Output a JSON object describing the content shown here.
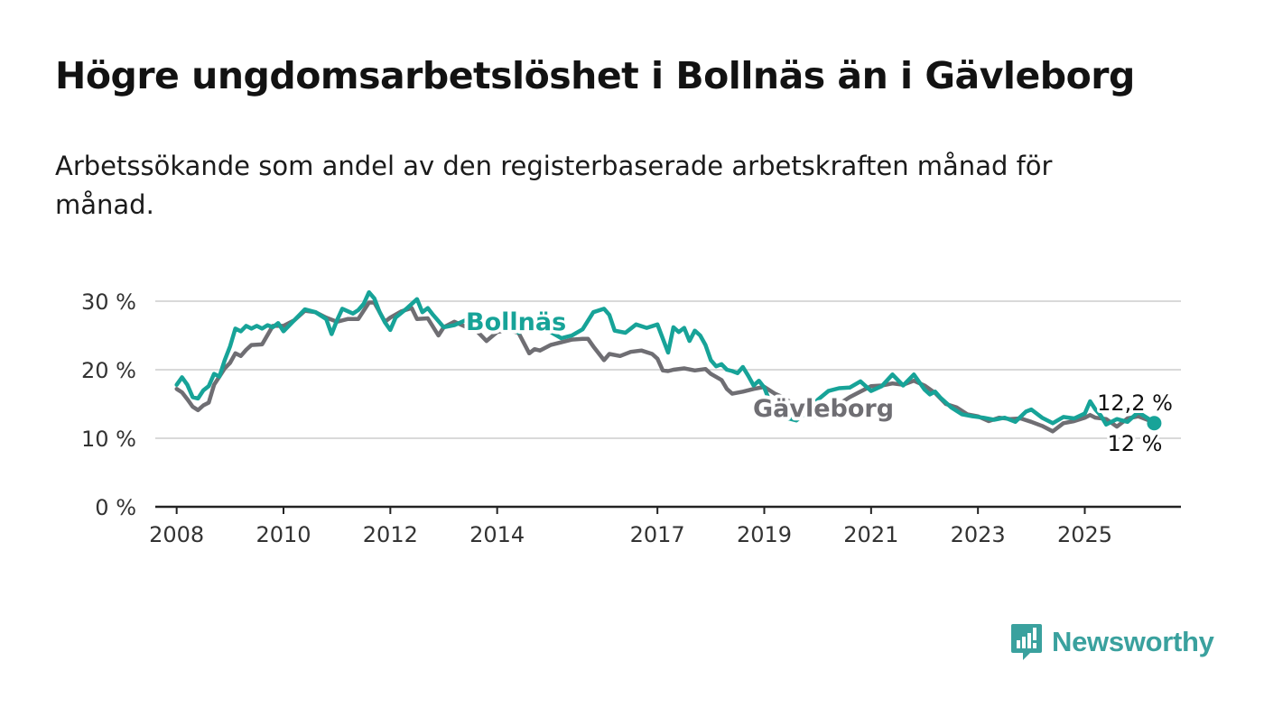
{
  "title": "Högre ungdomsarbetslöshet i Bollnäs än i Gävleborg",
  "subtitle": "Arbetssökande som andel av den registerbaserade arbetskraften månad för månad.",
  "brand": {
    "name": "Newsworthy",
    "color": "#3aa19e",
    "icon": "newsworthy-logo-icon"
  },
  "chart_data": {
    "type": "line",
    "title": "Högre ungdomsarbetslöshet i Bollnäs än i Gävleborg",
    "xlabel": "",
    "ylabel": "",
    "ylim": [
      0,
      30
    ],
    "xlim": [
      2007.6,
      2026.8
    ],
    "yticks": [
      0,
      10,
      20,
      30
    ],
    "ytick_labels": [
      "0 %",
      "10 %",
      "20 %",
      "30 %"
    ],
    "xticks": [
      2008,
      2010,
      2012,
      2014,
      2017,
      2019,
      2021,
      2023,
      2025
    ],
    "xtick_labels": [
      "2008",
      "2010",
      "2012",
      "2014",
      "2017",
      "2019",
      "2021",
      "2023",
      "2025"
    ],
    "grid": true,
    "series": [
      {
        "name": "Bollnäs",
        "color": "#17a398",
        "end_label": "12,2 %",
        "points": [
          [
            2008.0,
            17.8
          ],
          [
            2008.1,
            18.9
          ],
          [
            2008.2,
            17.8
          ],
          [
            2008.3,
            16.0
          ],
          [
            2008.4,
            15.8
          ],
          [
            2008.5,
            17.0
          ],
          [
            2008.6,
            17.6
          ],
          [
            2008.7,
            19.4
          ],
          [
            2008.8,
            19.0
          ],
          [
            2008.9,
            21.4
          ],
          [
            2009.0,
            23.4
          ],
          [
            2009.1,
            26.0
          ],
          [
            2009.2,
            25.6
          ],
          [
            2009.3,
            26.4
          ],
          [
            2009.4,
            26.0
          ],
          [
            2009.5,
            26.4
          ],
          [
            2009.6,
            26.0
          ],
          [
            2009.7,
            26.5
          ],
          [
            2009.8,
            26.2
          ],
          [
            2009.9,
            26.8
          ],
          [
            2010.0,
            25.6
          ],
          [
            2010.2,
            27.2
          ],
          [
            2010.4,
            28.8
          ],
          [
            2010.6,
            28.4
          ],
          [
            2010.8,
            27.4
          ],
          [
            2010.9,
            25.2
          ],
          [
            2011.0,
            27.2
          ],
          [
            2011.1,
            28.9
          ],
          [
            2011.3,
            28.2
          ],
          [
            2011.4,
            28.7
          ],
          [
            2011.5,
            29.6
          ],
          [
            2011.6,
            31.3
          ],
          [
            2011.7,
            30.4
          ],
          [
            2011.8,
            28.4
          ],
          [
            2011.9,
            26.9
          ],
          [
            2012.0,
            25.8
          ],
          [
            2012.1,
            27.6
          ],
          [
            2012.3,
            28.9
          ],
          [
            2012.5,
            30.3
          ],
          [
            2012.6,
            28.4
          ],
          [
            2012.7,
            29.0
          ],
          [
            2012.8,
            28.0
          ],
          [
            2012.9,
            27.1
          ],
          [
            2013.0,
            26.2
          ],
          [
            2013.2,
            26.5
          ],
          [
            2013.4,
            27.2
          ],
          [
            2013.6,
            27.5
          ],
          [
            2013.8,
            27.0
          ],
          [
            2014.0,
            27.3
          ],
          [
            2014.2,
            27.0
          ],
          [
            2014.4,
            25.4
          ],
          [
            2014.6,
            26.0
          ],
          [
            2014.8,
            26.4
          ],
          [
            2015.0,
            25.5
          ],
          [
            2015.2,
            24.6
          ],
          [
            2015.4,
            25.0
          ],
          [
            2015.6,
            25.9
          ],
          [
            2015.8,
            28.4
          ],
          [
            2016.0,
            28.9
          ],
          [
            2016.1,
            28.0
          ],
          [
            2016.2,
            25.7
          ],
          [
            2016.4,
            25.4
          ],
          [
            2016.6,
            26.6
          ],
          [
            2016.8,
            26.1
          ],
          [
            2017.0,
            26.6
          ],
          [
            2017.2,
            22.5
          ],
          [
            2017.3,
            26.2
          ],
          [
            2017.4,
            25.5
          ],
          [
            2017.5,
            26.1
          ],
          [
            2017.6,
            24.2
          ],
          [
            2017.7,
            25.7
          ],
          [
            2017.8,
            25.0
          ],
          [
            2017.9,
            23.6
          ],
          [
            2018.0,
            21.4
          ],
          [
            2018.1,
            20.5
          ],
          [
            2018.2,
            20.8
          ],
          [
            2018.3,
            20.0
          ],
          [
            2018.4,
            19.8
          ],
          [
            2018.5,
            19.5
          ],
          [
            2018.6,
            20.4
          ],
          [
            2018.7,
            19.1
          ],
          [
            2018.8,
            17.7
          ],
          [
            2018.9,
            18.4
          ],
          [
            2019.0,
            17.4
          ],
          [
            2019.1,
            15.4
          ],
          [
            2019.2,
            14.0
          ],
          [
            2019.4,
            13.0
          ],
          [
            2019.6,
            12.6
          ],
          [
            2019.8,
            13.8
          ],
          [
            2020.0,
            15.6
          ],
          [
            2020.2,
            16.9
          ],
          [
            2020.4,
            17.3
          ],
          [
            2020.6,
            17.4
          ],
          [
            2020.8,
            18.3
          ],
          [
            2021.0,
            16.9
          ],
          [
            2021.2,
            17.6
          ],
          [
            2021.4,
            19.3
          ],
          [
            2021.6,
            17.7
          ],
          [
            2021.8,
            19.3
          ],
          [
            2022.0,
            17.1
          ],
          [
            2022.1,
            16.4
          ],
          [
            2022.2,
            16.8
          ],
          [
            2022.3,
            15.9
          ],
          [
            2022.5,
            14.5
          ],
          [
            2022.7,
            13.5
          ],
          [
            2022.9,
            13.2
          ],
          [
            2023.1,
            13.0
          ],
          [
            2023.3,
            12.7
          ],
          [
            2023.5,
            13.0
          ],
          [
            2023.7,
            12.4
          ],
          [
            2023.9,
            13.9
          ],
          [
            2024.0,
            14.2
          ],
          [
            2024.2,
            13.0
          ],
          [
            2024.4,
            12.2
          ],
          [
            2024.6,
            13.1
          ],
          [
            2024.8,
            12.9
          ],
          [
            2025.0,
            13.6
          ],
          [
            2025.1,
            15.4
          ],
          [
            2025.2,
            14.2
          ],
          [
            2025.3,
            13.3
          ],
          [
            2025.4,
            12.0
          ],
          [
            2025.6,
            12.8
          ],
          [
            2025.8,
            12.4
          ],
          [
            2026.0,
            13.8
          ],
          [
            2026.2,
            12.8
          ],
          [
            2026.3,
            12.2
          ]
        ]
      },
      {
        "name": "Gävleborg",
        "color": "#6f6e73",
        "end_label": "12 %",
        "points": [
          [
            2008.0,
            17.2
          ],
          [
            2008.1,
            16.7
          ],
          [
            2008.2,
            15.7
          ],
          [
            2008.3,
            14.6
          ],
          [
            2008.4,
            14.1
          ],
          [
            2008.5,
            14.8
          ],
          [
            2008.6,
            15.2
          ],
          [
            2008.7,
            17.8
          ],
          [
            2008.8,
            19.0
          ],
          [
            2008.9,
            20.2
          ],
          [
            2009.0,
            21.0
          ],
          [
            2009.1,
            22.4
          ],
          [
            2009.2,
            22.0
          ],
          [
            2009.3,
            22.9
          ],
          [
            2009.4,
            23.6
          ],
          [
            2009.6,
            23.7
          ],
          [
            2009.8,
            26.4
          ],
          [
            2010.0,
            26.4
          ],
          [
            2010.2,
            27.2
          ],
          [
            2010.4,
            28.6
          ],
          [
            2010.6,
            28.4
          ],
          [
            2010.8,
            27.6
          ],
          [
            2011.0,
            27.0
          ],
          [
            2011.2,
            27.4
          ],
          [
            2011.4,
            27.4
          ],
          [
            2011.6,
            29.8
          ],
          [
            2011.7,
            29.8
          ],
          [
            2011.9,
            27.0
          ],
          [
            2012.0,
            27.6
          ],
          [
            2012.2,
            28.5
          ],
          [
            2012.4,
            29.0
          ],
          [
            2012.5,
            27.4
          ],
          [
            2012.7,
            27.5
          ],
          [
            2012.9,
            25.0
          ],
          [
            2013.0,
            26.2
          ],
          [
            2013.2,
            27.0
          ],
          [
            2013.4,
            26.3
          ],
          [
            2013.6,
            25.8
          ],
          [
            2013.8,
            24.2
          ],
          [
            2014.0,
            25.5
          ],
          [
            2014.2,
            25.8
          ],
          [
            2014.4,
            25.4
          ],
          [
            2014.6,
            22.4
          ],
          [
            2014.7,
            23.0
          ],
          [
            2014.8,
            22.8
          ],
          [
            2015.0,
            23.6
          ],
          [
            2015.2,
            24.0
          ],
          [
            2015.4,
            24.4
          ],
          [
            2015.6,
            24.5
          ],
          [
            2015.7,
            24.5
          ],
          [
            2015.8,
            23.4
          ],
          [
            2016.0,
            21.4
          ],
          [
            2016.1,
            22.3
          ],
          [
            2016.3,
            22.0
          ],
          [
            2016.5,
            22.6
          ],
          [
            2016.7,
            22.8
          ],
          [
            2016.9,
            22.3
          ],
          [
            2017.0,
            21.6
          ],
          [
            2017.1,
            19.9
          ],
          [
            2017.2,
            19.8
          ],
          [
            2017.3,
            20.0
          ],
          [
            2017.5,
            20.2
          ],
          [
            2017.7,
            19.9
          ],
          [
            2017.9,
            20.1
          ],
          [
            2018.0,
            19.4
          ],
          [
            2018.2,
            18.5
          ],
          [
            2018.3,
            17.2
          ],
          [
            2018.4,
            16.5
          ],
          [
            2018.6,
            16.8
          ],
          [
            2018.8,
            17.2
          ],
          [
            2019.0,
            17.5
          ],
          [
            2019.2,
            16.5
          ],
          [
            2019.4,
            15.8
          ],
          [
            2019.6,
            14.5
          ],
          [
            2019.8,
            13.8
          ],
          [
            2020.0,
            13.0
          ],
          [
            2020.2,
            14.0
          ],
          [
            2020.4,
            15.0
          ],
          [
            2020.6,
            16.0
          ],
          [
            2020.8,
            16.8
          ],
          [
            2021.0,
            17.6
          ],
          [
            2021.2,
            17.7
          ],
          [
            2021.4,
            18.0
          ],
          [
            2021.6,
            17.8
          ],
          [
            2021.8,
            18.4
          ],
          [
            2022.0,
            17.7
          ],
          [
            2022.2,
            16.6
          ],
          [
            2022.4,
            15.0
          ],
          [
            2022.6,
            14.5
          ],
          [
            2022.8,
            13.5
          ],
          [
            2023.0,
            13.2
          ],
          [
            2023.2,
            12.5
          ],
          [
            2023.4,
            13.0
          ],
          [
            2023.6,
            12.8
          ],
          [
            2023.8,
            12.9
          ],
          [
            2024.0,
            12.4
          ],
          [
            2024.2,
            11.8
          ],
          [
            2024.4,
            11.0
          ],
          [
            2024.6,
            12.2
          ],
          [
            2024.8,
            12.5
          ],
          [
            2025.0,
            13.0
          ],
          [
            2025.1,
            13.4
          ],
          [
            2025.2,
            13.0
          ],
          [
            2025.4,
            12.8
          ],
          [
            2025.6,
            11.7
          ],
          [
            2025.8,
            12.9
          ],
          [
            2026.0,
            13.2
          ],
          [
            2026.2,
            12.6
          ],
          [
            2026.3,
            12.0
          ]
        ]
      }
    ]
  }
}
